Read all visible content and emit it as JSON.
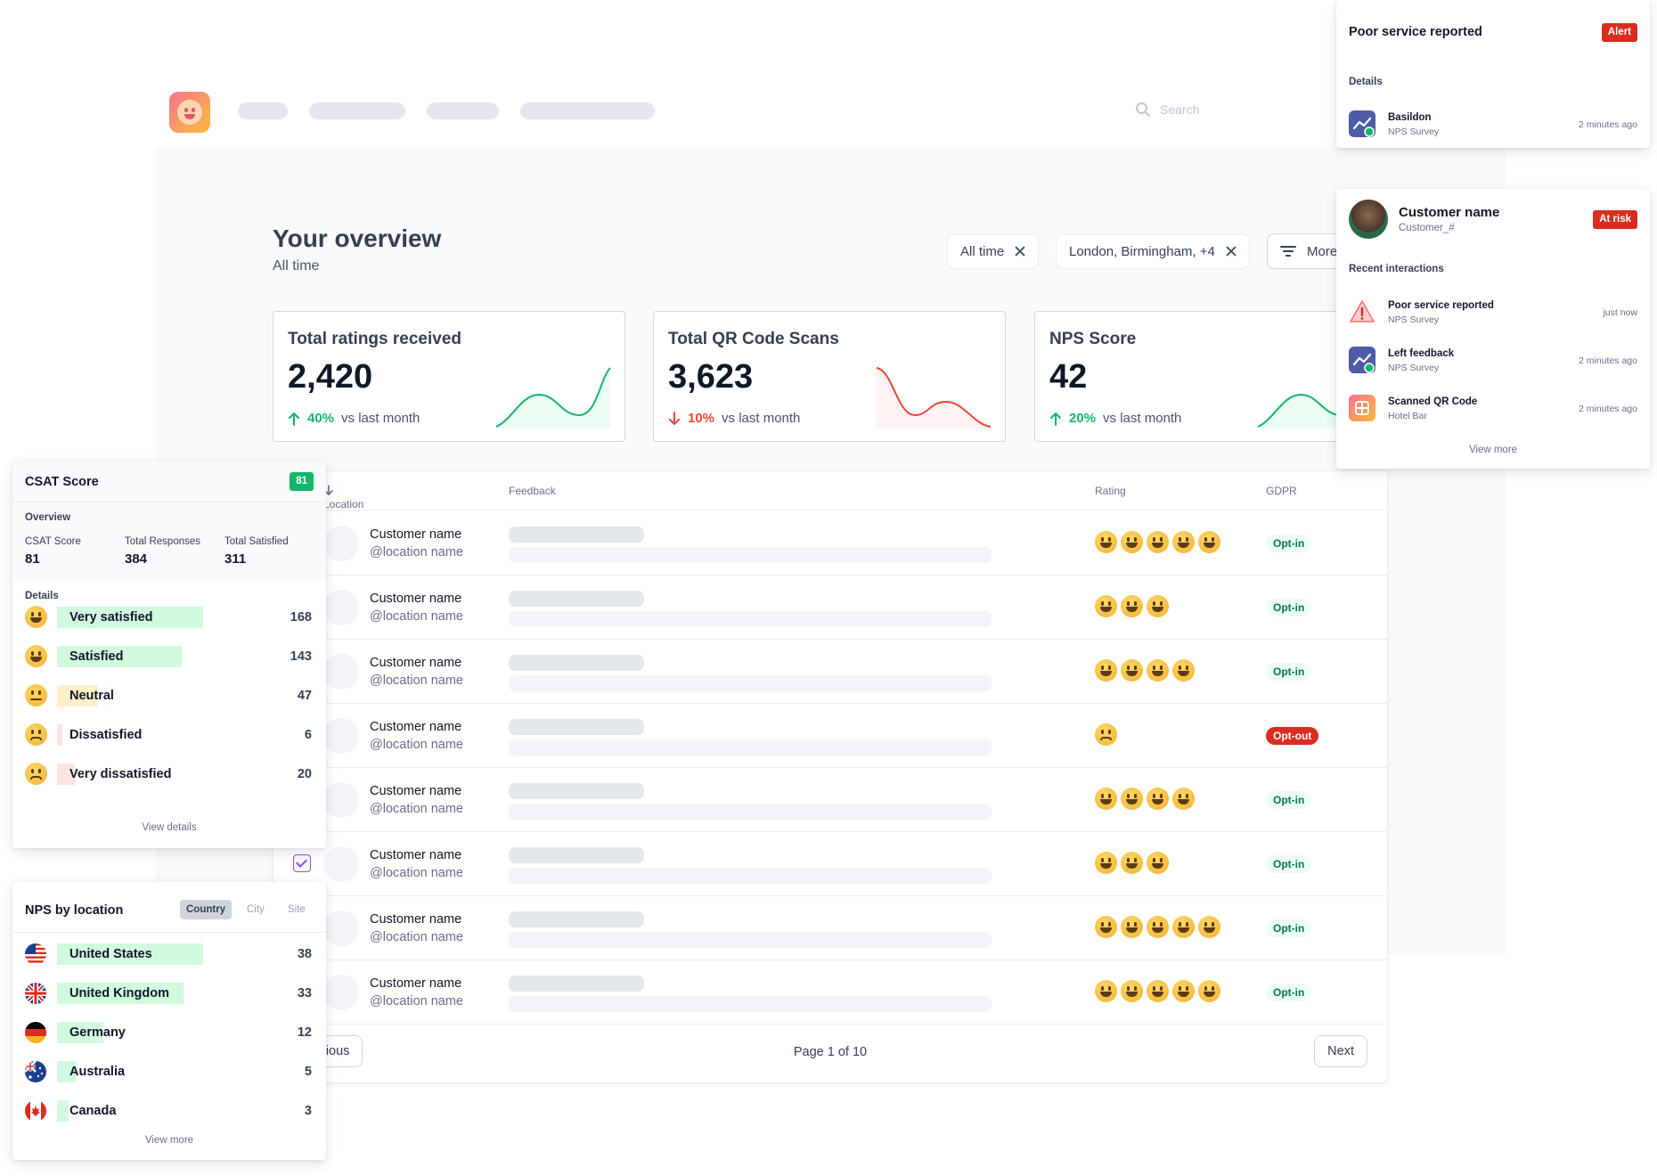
{
  "header": {
    "search_placeholder": "Search"
  },
  "overview": {
    "title": "Your overview",
    "subtitle": "All time",
    "filters": [
      "All time",
      "London, Birmingham, +4"
    ],
    "more_label": "More"
  },
  "stats": [
    {
      "title": "Total ratings received",
      "value": "2,420",
      "delta": "40%",
      "direction": "up",
      "delta_text": "vs last month",
      "color": "#12b76a"
    },
    {
      "title": "Total QR Code Scans",
      "value": "3,623",
      "delta": "10%",
      "direction": "down",
      "delta_text": "vs last month",
      "color": "#f04438"
    },
    {
      "title": "NPS Score",
      "value": "42",
      "delta": "20%",
      "direction": "up",
      "delta_text": "vs last month",
      "color": "#12b76a"
    }
  ],
  "table": {
    "headers": {
      "location": "Location",
      "feedback": "Feedback",
      "rating": "Rating",
      "gdpr": "GDPR"
    },
    "rows": [
      {
        "name": "Customer name",
        "handle": "@location name",
        "rating": 5,
        "mood": "happy",
        "gdpr": "Opt-in"
      },
      {
        "name": "Customer name",
        "handle": "@location name",
        "rating": 3,
        "mood": "happy",
        "gdpr": "Opt-in"
      },
      {
        "name": "Customer name",
        "handle": "@location name",
        "rating": 4,
        "mood": "happy",
        "gdpr": "Opt-in"
      },
      {
        "name": "Customer name",
        "handle": "@location name",
        "rating": 1,
        "mood": "sad",
        "gdpr": "Opt-out"
      },
      {
        "name": "Customer name",
        "handle": "@location name",
        "rating": 4,
        "mood": "happy",
        "gdpr": "Opt-in"
      },
      {
        "name": "Customer name",
        "handle": "@location name",
        "rating": 3,
        "mood": "happy",
        "gdpr": "Opt-in",
        "checked": true
      },
      {
        "name": "Customer name",
        "handle": "@location name",
        "rating": 5,
        "mood": "happy",
        "gdpr": "Opt-in"
      },
      {
        "name": "Customer name",
        "handle": "@location name",
        "rating": 5,
        "mood": "happy",
        "gdpr": "Opt-in"
      }
    ],
    "previous_label": "Previous",
    "page_info": "Page 1 of 10",
    "next_label": "Next"
  },
  "alert_card": {
    "title": "Poor service reported",
    "tag": "Alert",
    "details_label": "Details",
    "item": {
      "title": "Basildon",
      "sub": "NPS Survey",
      "time": "2 minutes ago"
    }
  },
  "customer_card": {
    "name": "Customer name",
    "id": "Customer_#",
    "tag": "At risk",
    "section_label": "Recent interactions",
    "items": [
      {
        "title": "Poor service reported",
        "sub": "NPS Survey",
        "time": "just now",
        "icon": "warning-icon"
      },
      {
        "title": "Left feedback",
        "sub": "NPS Survey",
        "time": "2 minutes ago",
        "icon": "chart-icon"
      },
      {
        "title": "Scanned QR Code",
        "sub": "Hotel Bar",
        "time": "2 minutes ago",
        "icon": "qr-icon"
      }
    ],
    "view_more": "View more"
  },
  "csat_card": {
    "title": "CSAT Score",
    "score_badge": "81",
    "overview_label": "Overview",
    "kpis": [
      {
        "label": "CSAT Score",
        "value": "81"
      },
      {
        "label": "Total Responses",
        "value": "384"
      },
      {
        "label": "Total Satisfied",
        "value": "311"
      }
    ],
    "details_label": "Details",
    "items": [
      {
        "label": "Very satisfied",
        "count": 168,
        "mood": "happy",
        "color": "#d1fadf"
      },
      {
        "label": "Satisfied",
        "count": 143,
        "mood": "happy",
        "color": "#d1fadf"
      },
      {
        "label": "Neutral",
        "count": 47,
        "mood": "meh",
        "color": "#fef0c7"
      },
      {
        "label": "Dissatisfied",
        "count": 6,
        "mood": "sad",
        "color": "#fee4e2"
      },
      {
        "label": "Very dissatisfied",
        "count": 20,
        "mood": "sad",
        "color": "#fee4e2"
      }
    ],
    "view_details": "View details"
  },
  "nps_card": {
    "title": "NPS by location",
    "segments": [
      "Country",
      "City",
      "Site"
    ],
    "active_segment": "Country",
    "items": [
      {
        "label": "United States",
        "count": 38,
        "flag": "us-flag-icon"
      },
      {
        "label": "United Kingdom",
        "count": 33,
        "flag": "uk-flag-icon"
      },
      {
        "label": "Germany",
        "count": 12,
        "flag": "germany-flag-icon"
      },
      {
        "label": "Australia",
        "count": 5,
        "flag": "australia-flag-icon"
      },
      {
        "label": "Canada",
        "count": 3,
        "flag": "canada-flag-icon"
      }
    ],
    "view_more": "View more"
  },
  "colors": {
    "positive": "#12b76a",
    "negative": "#f04438",
    "accent": "#7f56d9"
  }
}
